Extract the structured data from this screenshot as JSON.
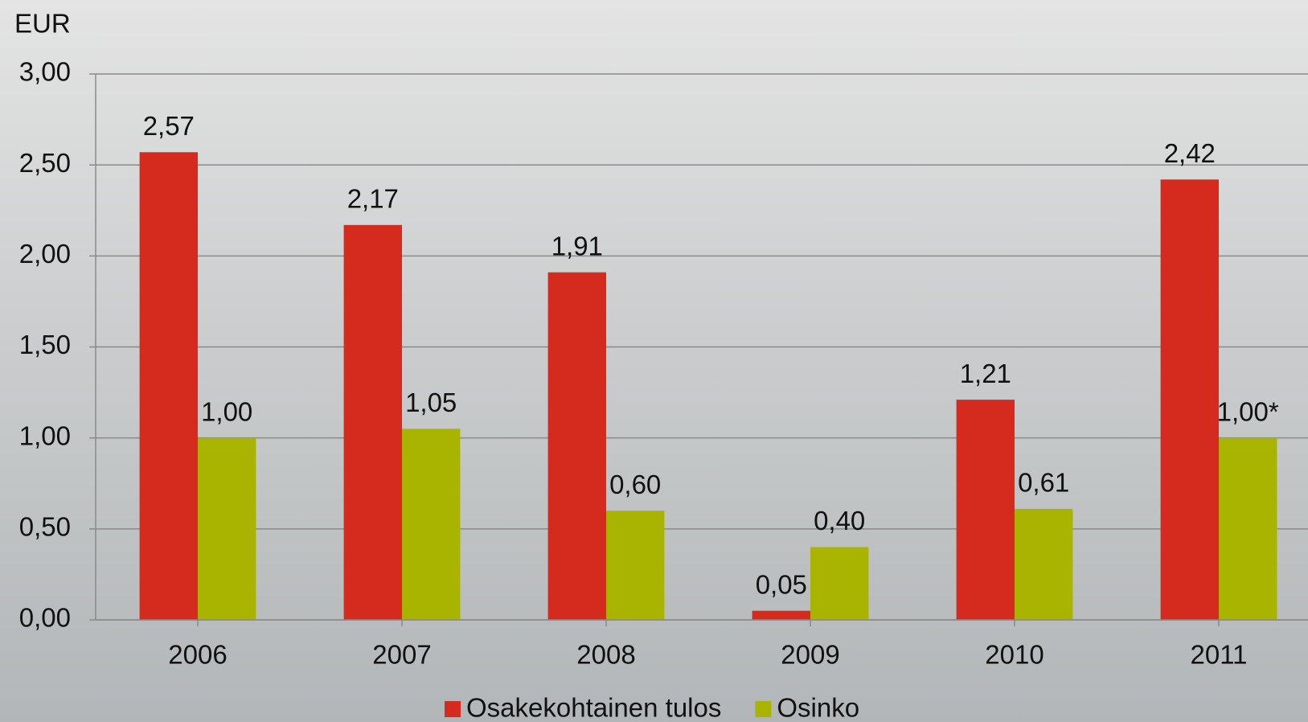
{
  "chart_data": {
    "type": "bar",
    "y_label": "EUR",
    "categories": [
      "2006",
      "2007",
      "2008",
      "2009",
      "2010",
      "2011"
    ],
    "series": [
      {
        "name": "Osakekohtainen tulos",
        "color": "#d52b1e",
        "values": [
          2.57,
          2.17,
          1.91,
          0.05,
          1.21,
          2.42
        ],
        "value_labels": [
          "2,57",
          "2,17",
          "1,91",
          "0,05",
          "1,21",
          "2,42"
        ]
      },
      {
        "name": "Osinko",
        "color": "#a8b400",
        "values": [
          1.0,
          1.05,
          0.6,
          0.4,
          0.61,
          1.0
        ],
        "value_labels": [
          "1,00",
          "1,05",
          "0,60",
          "0,40",
          "0,61",
          "1,00*"
        ]
      }
    ],
    "ylim": [
      0,
      3
    ],
    "yticks": [
      {
        "value": 0,
        "label": "0,00"
      },
      {
        "value": 0.5,
        "label": "0,50"
      },
      {
        "value": 1,
        "label": "1,00"
      },
      {
        "value": 1.5,
        "label": "1,50"
      },
      {
        "value": 2,
        "label": "2,00"
      },
      {
        "value": 2.5,
        "label": "2,50"
      },
      {
        "value": 3,
        "label": "3,00"
      }
    ],
    "grid": true,
    "legend": "bottom"
  }
}
